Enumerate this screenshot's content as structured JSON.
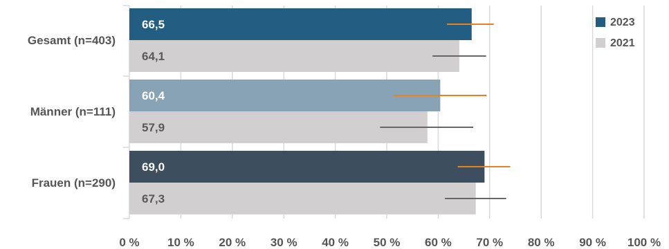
{
  "chart_data": {
    "type": "bar",
    "orientation": "horizontal",
    "categories": [
      "Gesamt (n=403)",
      "Männer (n=111)",
      "Frauen (n=290)"
    ],
    "series": [
      {
        "name": "2023",
        "values": [
          66.5,
          60.4,
          69.0
        ],
        "value_labels": [
          "66,5",
          "60,4",
          "69,0"
        ],
        "bar_colors": [
          "#215e82",
          "#87a3b5",
          "#3d4f5e"
        ],
        "legend_color": "#215e82",
        "label_color": "#ffffff",
        "error_bars": [
          [
            61.7,
            70.8
          ],
          [
            51.3,
            69.4
          ],
          [
            63.8,
            74.0
          ]
        ],
        "error_color": "#e8821e"
      },
      {
        "name": "2021",
        "values": [
          64.1,
          57.9,
          67.3
        ],
        "value_labels": [
          "64,1",
          "57,9",
          "67,3"
        ],
        "bar_colors": [
          "#d1cfcf",
          "#d1cfcf",
          "#d1cfcf"
        ],
        "legend_color": "#d1cfcf",
        "label_color": "#595959",
        "error_bars": [
          [
            58.9,
            69.3
          ],
          [
            48.7,
            66.8
          ],
          [
            61.3,
            73.2
          ]
        ],
        "error_color": "#666666"
      }
    ],
    "xlim": [
      0,
      100
    ],
    "x_ticks": [
      0,
      10,
      20,
      30,
      40,
      50,
      60,
      70,
      80,
      90,
      100
    ],
    "x_tick_labels": [
      "0 %",
      "10 %",
      "20 %",
      "30 %",
      "40 %",
      "50 %",
      "60 %",
      "70 %",
      "80 %",
      "90 %",
      "100 %"
    ],
    "grid": true,
    "grid_color": "#d9d9d9",
    "legend_position": "top-right",
    "title": "",
    "xlabel": "",
    "ylabel": ""
  }
}
